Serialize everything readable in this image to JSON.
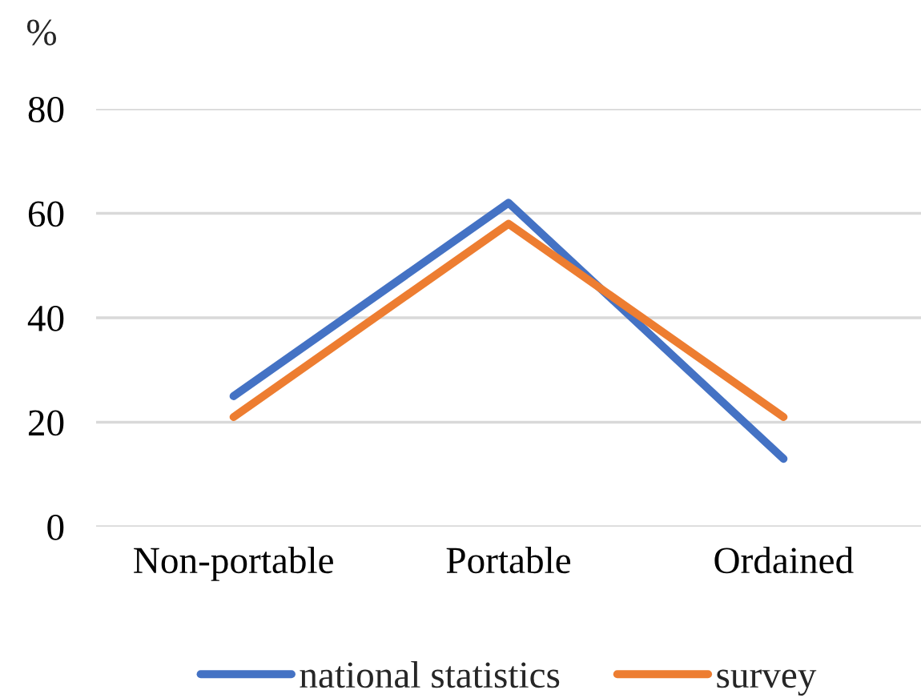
{
  "chart_data": {
    "type": "line",
    "ylabel": "%",
    "categories": [
      "Non-portable",
      "Portable",
      "Ordained"
    ],
    "series": [
      {
        "name": "national statistics",
        "color": "#4472c4",
        "values": [
          25,
          62,
          13
        ]
      },
      {
        "name": "survey",
        "color": "#ed7d31",
        "values": [
          21,
          58,
          21
        ]
      }
    ],
    "ylim": [
      0,
      80
    ],
    "yticks": [
      0,
      20,
      40,
      60,
      80
    ],
    "grid": "y",
    "legend": "bottom"
  }
}
